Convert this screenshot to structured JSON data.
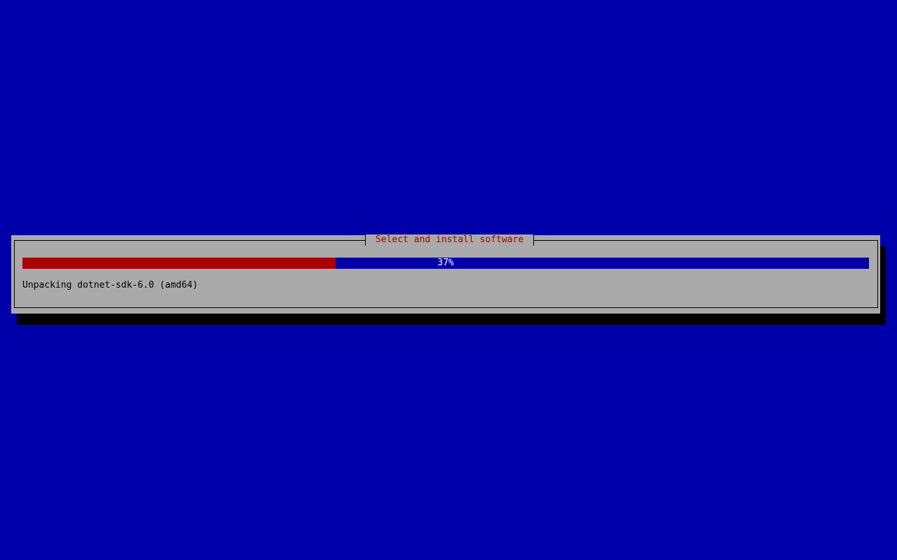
{
  "dialog": {
    "title": "Select and install software",
    "progress": {
      "percent": 37,
      "label": "37%"
    },
    "status": "Unpacking dotnet-sdk-6.0 (amd64)"
  },
  "colors": {
    "background": "#0000aa",
    "dialog": "#aaaaaa",
    "title": "#aa0000",
    "progress_fill": "#aa0000",
    "progress_track": "#0000aa"
  }
}
